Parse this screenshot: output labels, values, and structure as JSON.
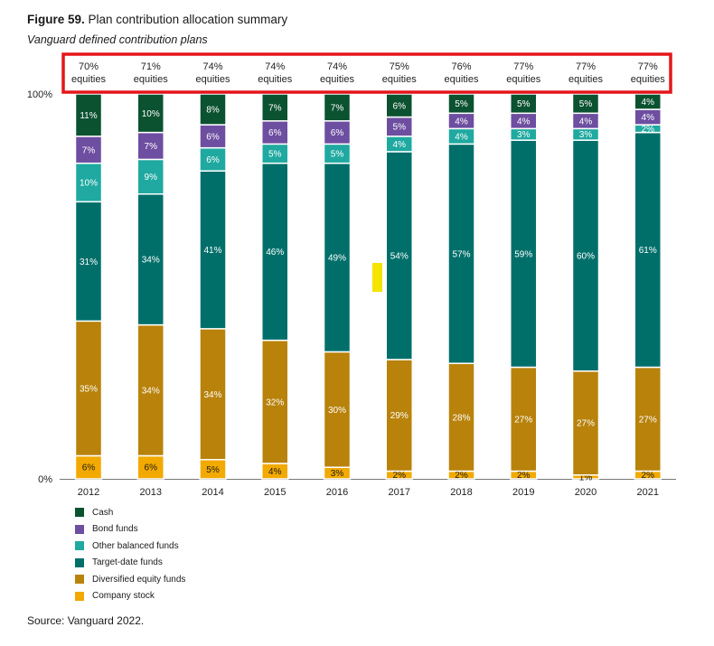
{
  "title_bold": "Figure 59.",
  "title_text": " Plan contribution allocation summary",
  "subtitle": "Vanguard defined contribution plans",
  "source": "Source: Vanguard 2022.",
  "colors": {
    "Company stock": "#f2a900",
    "Diversified equity funds": "#b8820b",
    "Target-date funds": "#006f6a",
    "Other balanced funds": "#1fa9a0",
    "Bond funds": "#6d4ea0",
    "Cash": "#0b5230",
    "highlight_box": "#e4161b",
    "marker": "#f5e400"
  },
  "legend": [
    "Cash",
    "Bond funds",
    "Other balanced funds",
    "Target-date funds",
    "Diversified equity funds",
    "Company stock"
  ],
  "chart_data": {
    "type": "bar",
    "stacked": true,
    "categories": [
      "2012",
      "2013",
      "2014",
      "2015",
      "2016",
      "2017",
      "2018",
      "2019",
      "2020",
      "2021"
    ],
    "y_tick_labels": [
      "100%",
      "0%"
    ],
    "ylim": [
      0,
      100
    ],
    "equity_labels": [
      "70%\nequities",
      "71%\nequities",
      "74%\nequities",
      "74%\nequities",
      "74%\nequities",
      "75%\nequities",
      "76%\nequities",
      "77%\nequities",
      "77%\nequities",
      "77%\nequities"
    ],
    "series": [
      {
        "name": "Company stock",
        "values": [
          6,
          6,
          5,
          4,
          3,
          2,
          2,
          2,
          1,
          2
        ]
      },
      {
        "name": "Diversified equity funds",
        "values": [
          35,
          34,
          34,
          32,
          30,
          29,
          28,
          27,
          27,
          27
        ]
      },
      {
        "name": "Target-date funds",
        "values": [
          31,
          34,
          41,
          46,
          49,
          54,
          57,
          59,
          60,
          61
        ]
      },
      {
        "name": "Other balanced funds",
        "values": [
          10,
          9,
          6,
          5,
          5,
          4,
          4,
          3,
          3,
          2
        ]
      },
      {
        "name": "Bond funds",
        "values": [
          7,
          7,
          6,
          6,
          6,
          5,
          4,
          4,
          4,
          4
        ]
      },
      {
        "name": "Cash",
        "values": [
          11,
          10,
          8,
          7,
          7,
          6,
          5,
          5,
          5,
          4
        ]
      }
    ]
  }
}
